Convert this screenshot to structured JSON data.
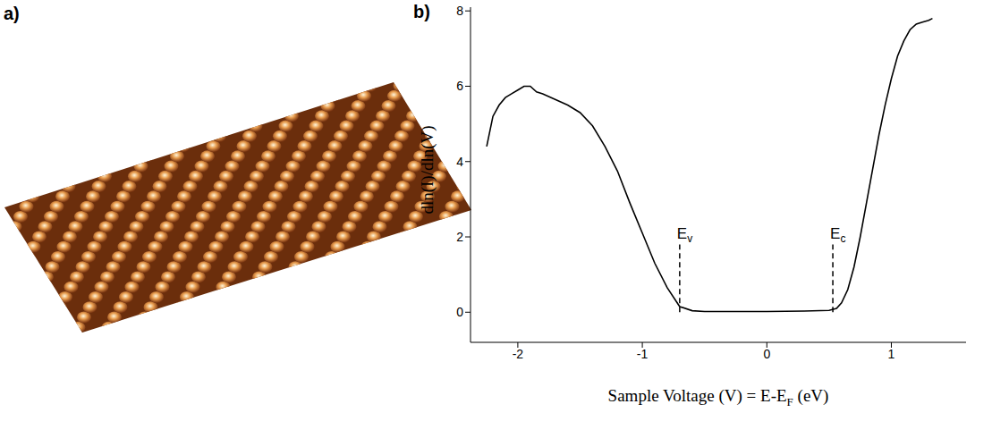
{
  "chart_data": [
    {
      "type": "image",
      "title": "a)"
    },
    {
      "type": "line",
      "title": "b)",
      "x_label": {
        "text": "Sample Voltage (V) = E-E",
        "subscript": "F",
        "suffix": " (eV)"
      },
      "y_label": "dln(I)/dln(V)",
      "x": [
        -2.25,
        -2.2,
        -2.15,
        -2.1,
        -2.05,
        -2.0,
        -1.95,
        -1.9,
        -1.85,
        -1.8,
        -1.7,
        -1.6,
        -1.5,
        -1.4,
        -1.3,
        -1.2,
        -1.1,
        -1.0,
        -0.9,
        -0.8,
        -0.7,
        -0.6,
        -0.5,
        -0.3,
        0,
        0.3,
        0.5,
        0.56,
        0.6,
        0.65,
        0.7,
        0.75,
        0.8,
        0.85,
        0.9,
        0.95,
        1.0,
        1.05,
        1.1,
        1.15,
        1.2,
        1.25,
        1.3,
        1.33
      ],
      "values": [
        4.4,
        5.2,
        5.5,
        5.7,
        5.8,
        5.9,
        6.0,
        6.0,
        5.85,
        5.8,
        5.65,
        5.5,
        5.3,
        4.95,
        4.4,
        3.75,
        2.9,
        2.1,
        1.3,
        0.65,
        0.15,
        0.04,
        0.02,
        0.02,
        0.02,
        0.03,
        0.05,
        0.1,
        0.25,
        0.6,
        1.2,
        2.0,
        2.9,
        3.8,
        4.7,
        5.5,
        6.2,
        6.8,
        7.2,
        7.5,
        7.65,
        7.7,
        7.75,
        7.8
      ],
      "color": "#000000",
      "xlim": [
        -2.38,
        1.6
      ],
      "xticks": [
        -2,
        -1,
        0,
        1
      ],
      "ylim": [
        -0.8,
        8.1
      ],
      "yticks": [
        0,
        2,
        4,
        6,
        8
      ],
      "grid": false,
      "annotations": [
        {
          "text": "E",
          "subscript": "v",
          "x": -0.7,
          "y": [
            0,
            1.8
          ],
          "line_style": "dashed"
        },
        {
          "text": "E",
          "subscript": "c",
          "x": 0.53,
          "y": [
            0,
            1.8
          ],
          "line_style": "dashed"
        }
      ]
    }
  ]
}
